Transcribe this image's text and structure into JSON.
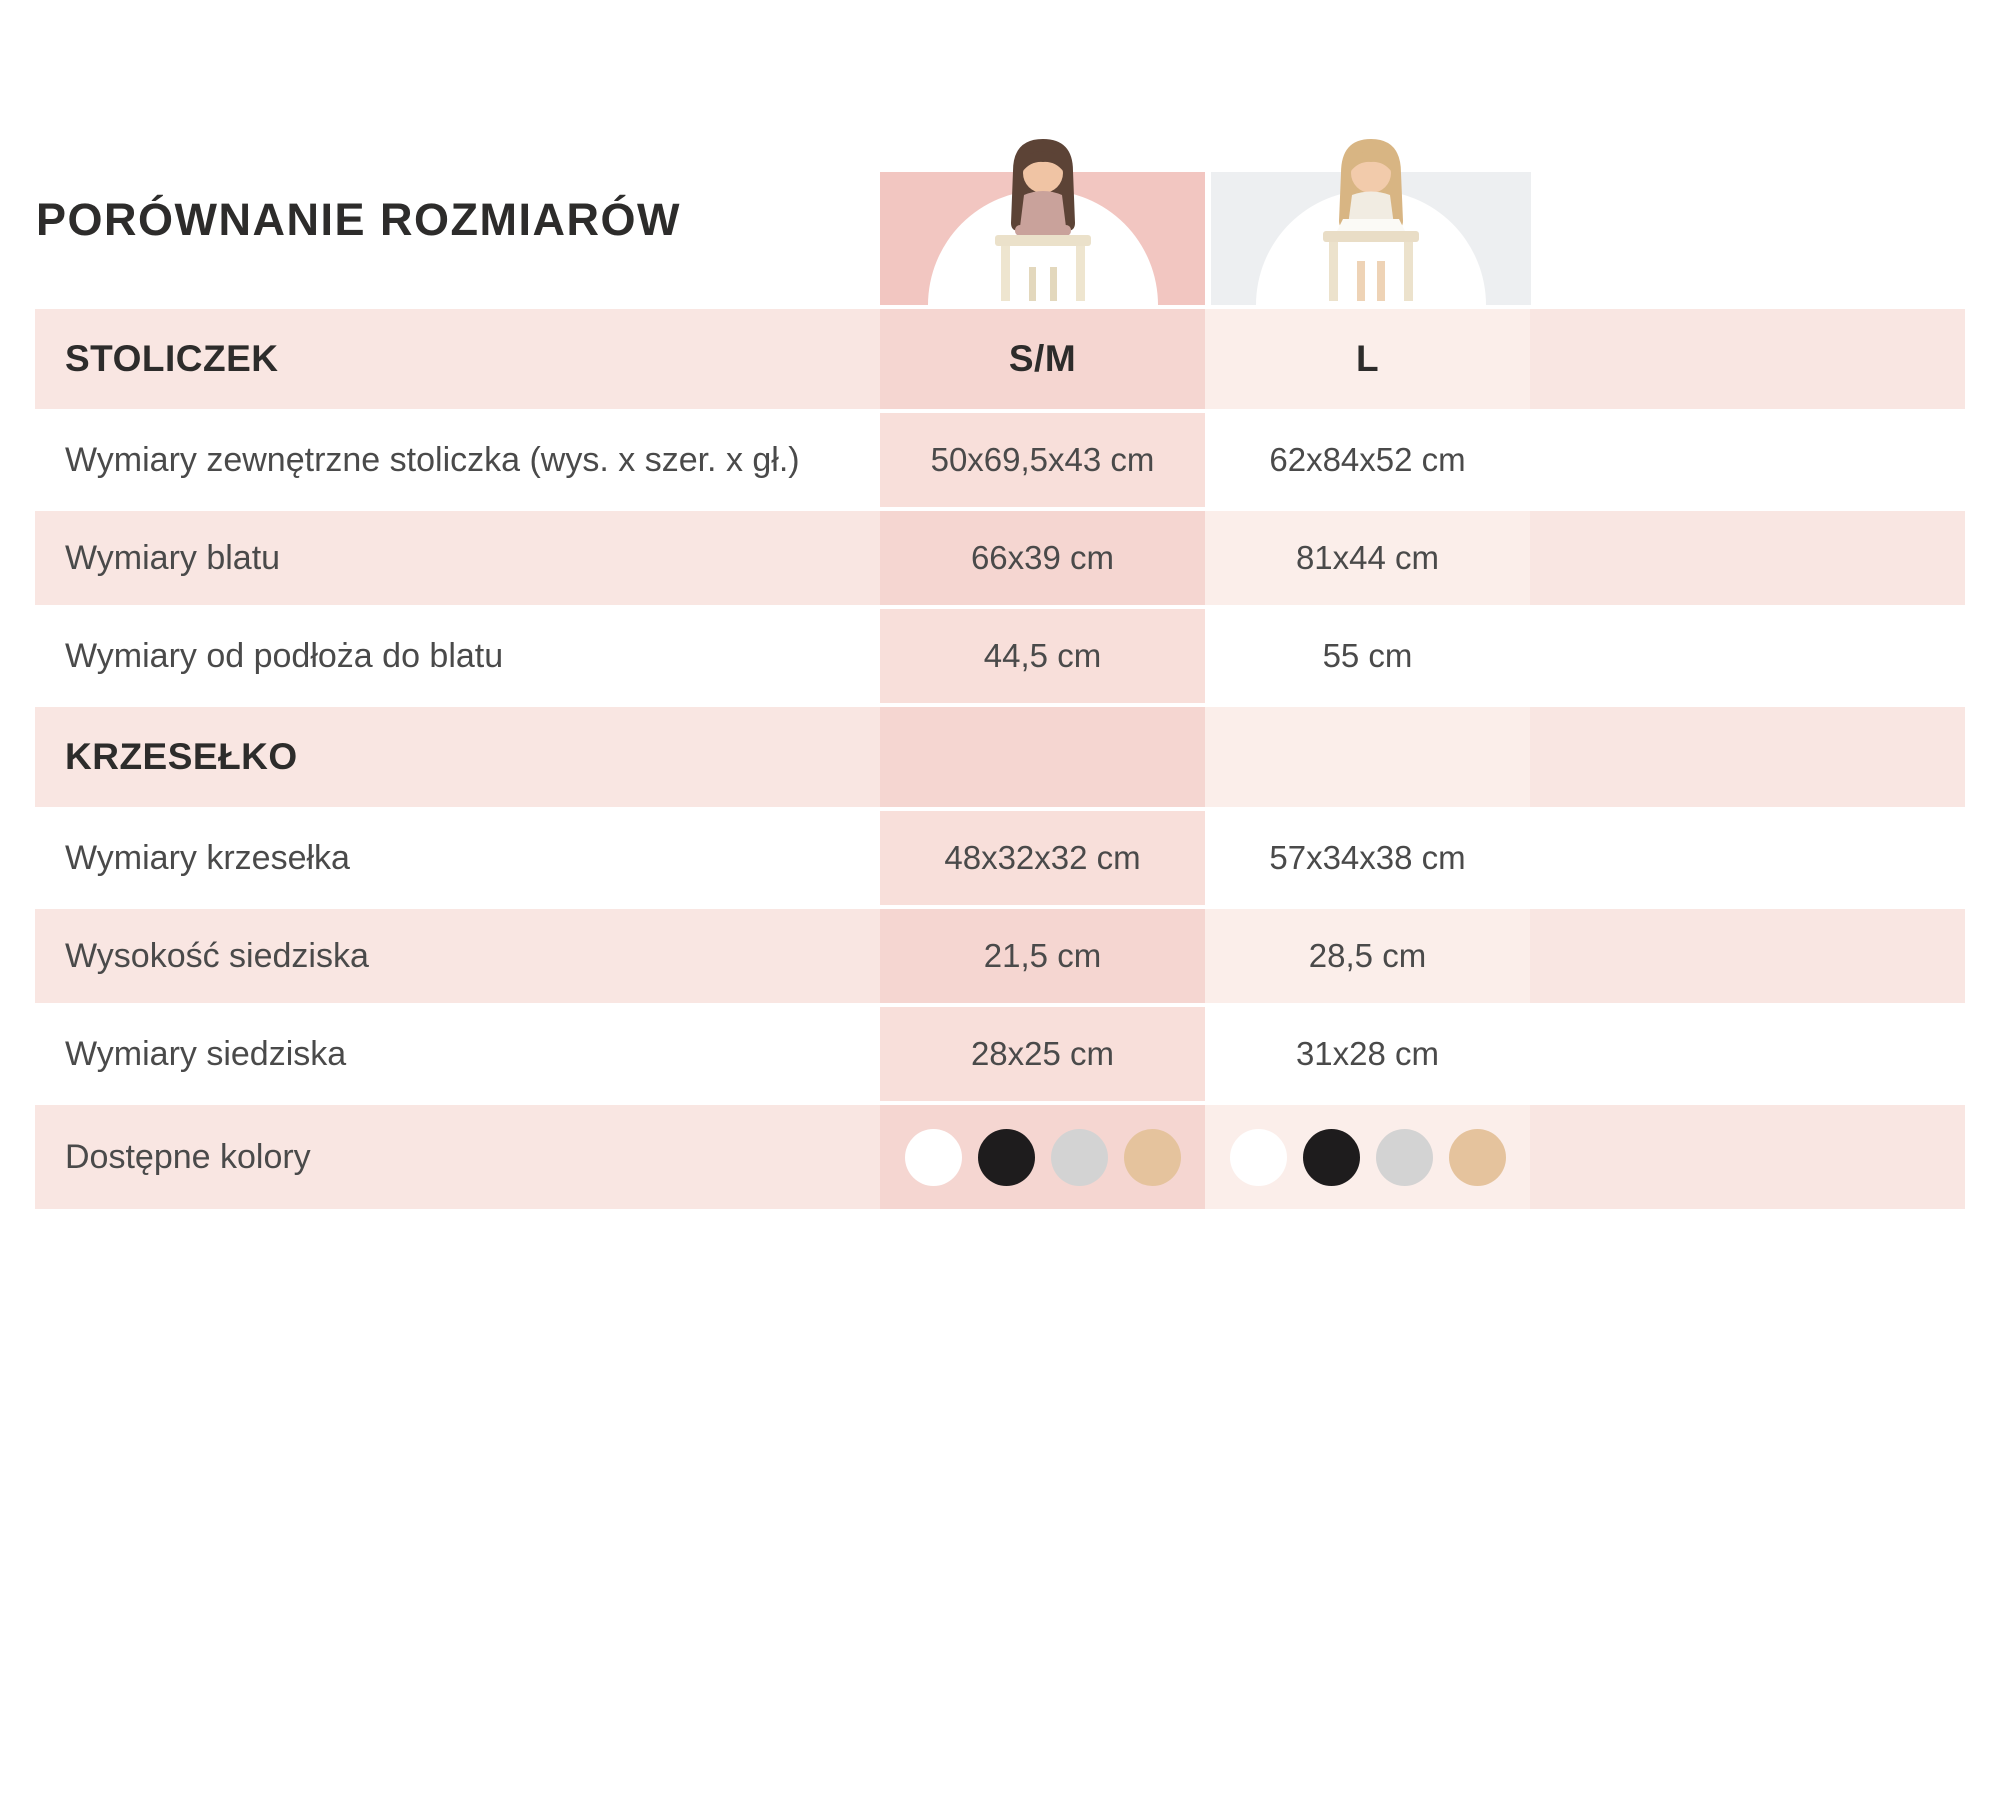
{
  "title": "PORÓWNANIE ROZMIARÓW",
  "chart_data": {
    "type": "table",
    "title": "PORÓWNANIE ROZMIARÓW",
    "columns": [
      "S/M",
      "L"
    ],
    "sections": [
      {
        "header": "STOLICZEK",
        "rows": [
          {
            "label": "Wymiary zewnętrzne stoliczka (wys. x szer. x gł.)",
            "sm": "50x69,5x43 cm",
            "l": "62x84x52 cm"
          },
          {
            "label": "Wymiary blatu",
            "sm": "66x39 cm",
            "l": "81x44 cm"
          },
          {
            "label": "Wymiary od podłoża do blatu",
            "sm": "44,5 cm",
            "l": "55 cm"
          }
        ]
      },
      {
        "header": "KRZESEŁKO",
        "rows": [
          {
            "label": "Wymiary krzesełka",
            "sm": "48x32x32 cm",
            "l": "57x34x38 cm"
          },
          {
            "label": "Wysokość siedziska",
            "sm": "21,5 cm",
            "l": "28,5 cm"
          },
          {
            "label": "Wymiary siedziska",
            "sm": "28x25 cm",
            "l": "31x28 cm"
          }
        ]
      }
    ],
    "colors_row": {
      "label": "Dostępne kolory",
      "available_colors": [
        "white",
        "black",
        "gray",
        "beige"
      ],
      "swatch_hex": [
        "#ffffff",
        "#1e1c1d",
        "#d3d3d3",
        "#e5c39d"
      ]
    }
  },
  "images": {
    "sm_column": "child-at-desk-photo",
    "l_column": "child-at-desk-photo"
  },
  "theme": {
    "sm_header_bg": "#f2c6c1",
    "l_header_bg": "#edeff1",
    "row_pink": "#f9e6e2",
    "l_pink": "#fbeeea",
    "sm_pink": "#f5d6d1",
    "sm_light": "#f8dfda",
    "text_dark": "#2d2c2b",
    "text_gray": "#4a4a4a"
  }
}
